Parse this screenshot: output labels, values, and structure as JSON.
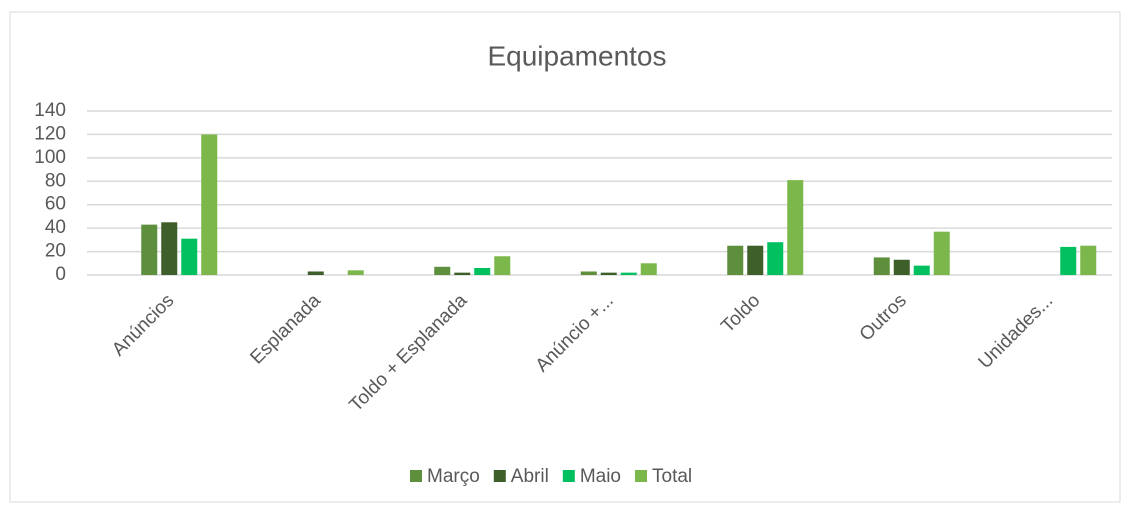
{
  "chart_data": {
    "type": "bar",
    "title": "Equipamentos",
    "categories": [
      "Anúncios",
      "Esplanada",
      "Toldo + Esplanada",
      "Anúncio +...",
      "Toldo",
      "Outros",
      "Unidades..."
    ],
    "series": [
      {
        "name": "Março",
        "color": "#5e8f3c",
        "values": [
          43,
          0,
          7,
          3,
          25,
          15,
          0
        ]
      },
      {
        "name": "Abril",
        "color": "#3f5f2a",
        "values": [
          45,
          3,
          2,
          2,
          25,
          13,
          0
        ]
      },
      {
        "name": "Maio",
        "color": "#00c060",
        "values": [
          31,
          0,
          6,
          2,
          28,
          8,
          24
        ]
      },
      {
        "name": "Total",
        "color": "#7cb74c",
        "values": [
          120,
          4,
          16,
          10,
          81,
          37,
          25
        ]
      }
    ],
    "ylim": [
      0,
      140
    ],
    "yticks": [
      0,
      20,
      40,
      60,
      80,
      100,
      120,
      140
    ],
    "grid": true,
    "legend": "bottom"
  }
}
